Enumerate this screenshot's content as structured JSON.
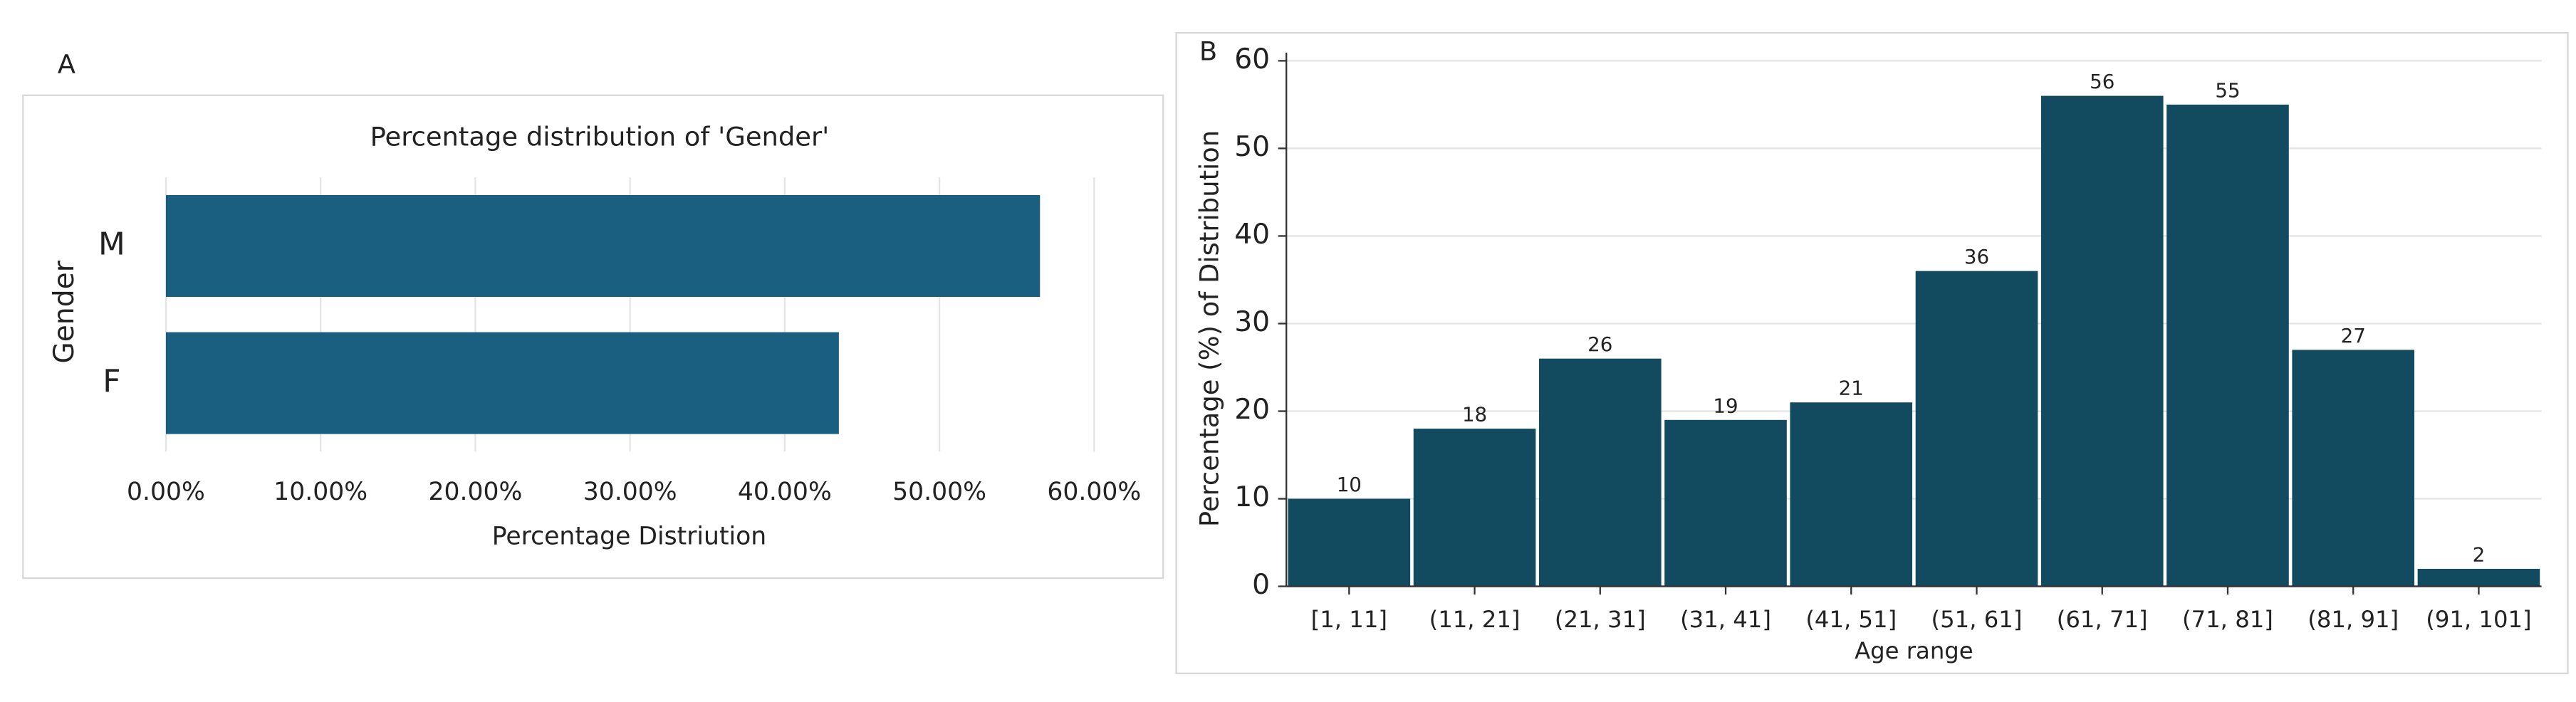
{
  "chart_data": [
    {
      "type": "barh",
      "panel": "A",
      "title": "Percentage distribution of 'Gender'",
      "xlabel": "Percentage Distriution",
      "ylabel": "Gender",
      "categories": [
        "M",
        "F"
      ],
      "values": [
        56.5,
        43.5
      ],
      "color": "#1a5f80",
      "xlim": [
        0,
        60
      ],
      "xticks": [
        {
          "value": 0,
          "label": "0.00%"
        },
        {
          "value": 10,
          "label": "10.00%"
        },
        {
          "value": 20,
          "label": "20.00%"
        },
        {
          "value": 30,
          "label": "30.00%"
        },
        {
          "value": 40,
          "label": "40.00%"
        },
        {
          "value": 50,
          "label": "50.00%"
        },
        {
          "value": 60,
          "label": "60.00%"
        }
      ],
      "grid": true
    },
    {
      "type": "bar",
      "panel": "B",
      "xlabel": "Age range",
      "ylabel": "Percentage (%) of Distribution",
      "categories": [
        "[1, 11]",
        "(11, 21]",
        "(21, 31]",
        "(31, 41]",
        "(41, 51]",
        "(51, 61]",
        "(61, 71]",
        "(71, 81]",
        "(81, 91]",
        "(91, 101]"
      ],
      "values": [
        10,
        18,
        26,
        19,
        21,
        36,
        56,
        55,
        27,
        2
      ],
      "color": "#124a60",
      "ylim": [
        0,
        60
      ],
      "yticks": [
        0,
        10,
        20,
        30,
        40,
        50,
        60
      ],
      "grid": true
    }
  ]
}
